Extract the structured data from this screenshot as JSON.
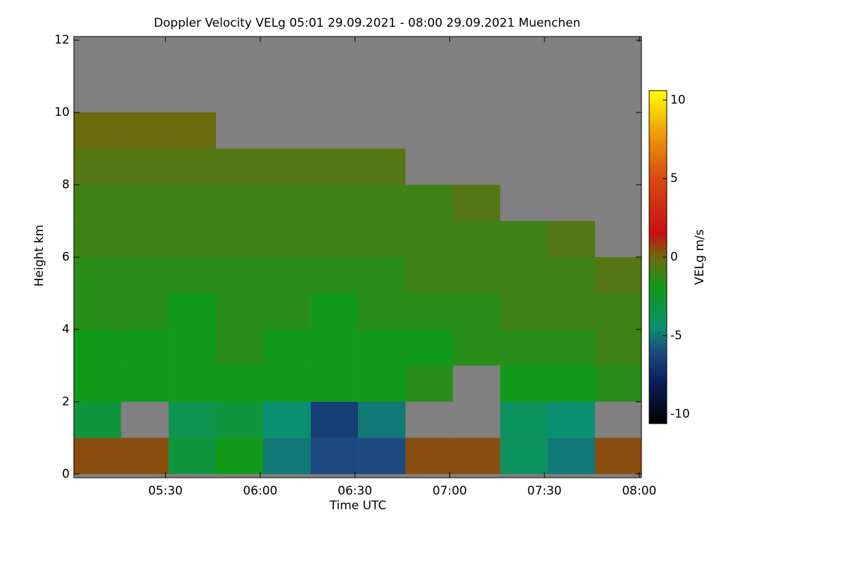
{
  "chart_data": {
    "type": "heatmap",
    "title": "Doppler Velocity VELg   05:01 29.09.2021 - 08:00 29.09.2021 Muenchen",
    "x_label": "Time UTC",
    "y_label": "Height km",
    "colorbar_label": "VELg m/s",
    "x_edges": [
      301,
      316,
      331,
      346,
      361,
      376,
      391,
      406,
      421,
      436,
      451,
      466,
      481
    ],
    "y_edges": [
      0,
      1,
      2,
      3,
      4,
      5,
      6,
      7,
      8,
      9,
      10,
      11,
      12
    ],
    "values": [
      [
        0.5,
        0.5,
        -3,
        -2,
        -5,
        -6,
        -6,
        0.5,
        0.5,
        -4,
        -5,
        0.5
      ],
      [
        -3,
        null,
        -3.5,
        -3,
        -4.5,
        -6.5,
        -5,
        null,
        null,
        -4,
        -4.5,
        null
      ],
      [
        -2,
        -2,
        -2,
        -2,
        -2,
        -2,
        -2,
        -1.5,
        null,
        -2,
        -2,
        -1.5
      ],
      [
        -2,
        -2,
        -2,
        -1.5,
        -2,
        -2,
        -2,
        -2,
        -1.5,
        -1.5,
        -1.5,
        -1
      ],
      [
        -1.5,
        -1.5,
        -2,
        -1.5,
        -1.5,
        -2,
        -1.5,
        -1.5,
        -1.5,
        -1,
        -1,
        -1
      ],
      [
        -1.5,
        -1.5,
        -1.5,
        -1.5,
        -1.5,
        -1.5,
        -1.5,
        -1,
        -1,
        -1,
        -1,
        -0.5
      ],
      [
        -1,
        -1,
        -1,
        -1,
        -1,
        -1,
        -1,
        -1,
        -1,
        -1,
        -0.5,
        null
      ],
      [
        -1,
        -1,
        -1,
        -1,
        -1,
        -1,
        -1,
        -1,
        -0.5,
        null,
        null,
        null
      ],
      [
        -0.5,
        -0.5,
        -0.5,
        -0.5,
        -0.5,
        -0.5,
        -0.5,
        null,
        null,
        null,
        null,
        null
      ],
      [
        0,
        0,
        0,
        null,
        null,
        null,
        null,
        null,
        null,
        null,
        null,
        null
      ],
      [
        null,
        null,
        null,
        null,
        null,
        null,
        null,
        null,
        null,
        null,
        null,
        null
      ],
      [
        null,
        null,
        null,
        null,
        null,
        null,
        null,
        null,
        null,
        null,
        null,
        null
      ]
    ],
    "xlim": [
      301,
      480.7
    ],
    "ylim": [
      -0.1,
      12.1
    ],
    "xticks": [
      {
        "value": 330,
        "label": "05:30"
      },
      {
        "value": 360,
        "label": "06:00"
      },
      {
        "value": 390,
        "label": "06:30"
      },
      {
        "value": 420,
        "label": "07:00"
      },
      {
        "value": 450,
        "label": "07:30"
      },
      {
        "value": 480,
        "label": "08:00"
      }
    ],
    "yticks": [
      0,
      2,
      4,
      6,
      8,
      10,
      12
    ],
    "clim": [
      -10.6,
      10.6
    ],
    "cticks": [
      -10,
      -5,
      0,
      5,
      10
    ],
    "no_data_color": "#808080",
    "colormap": [
      {
        "value": -10.6,
        "color": "#000000"
      },
      {
        "value": -8,
        "color": "#0c1e5a"
      },
      {
        "value": -6,
        "color": "#1c4a80"
      },
      {
        "value": -4.5,
        "color": "#0a9070"
      },
      {
        "value": -2,
        "color": "#129a1a"
      },
      {
        "value": 0,
        "color": "#6b6b10"
      },
      {
        "value": 1.5,
        "color": "#c81010"
      },
      {
        "value": 5,
        "color": "#d84a10"
      },
      {
        "value": 8,
        "color": "#f0a000"
      },
      {
        "value": 10.6,
        "color": "#ffff00"
      }
    ]
  }
}
